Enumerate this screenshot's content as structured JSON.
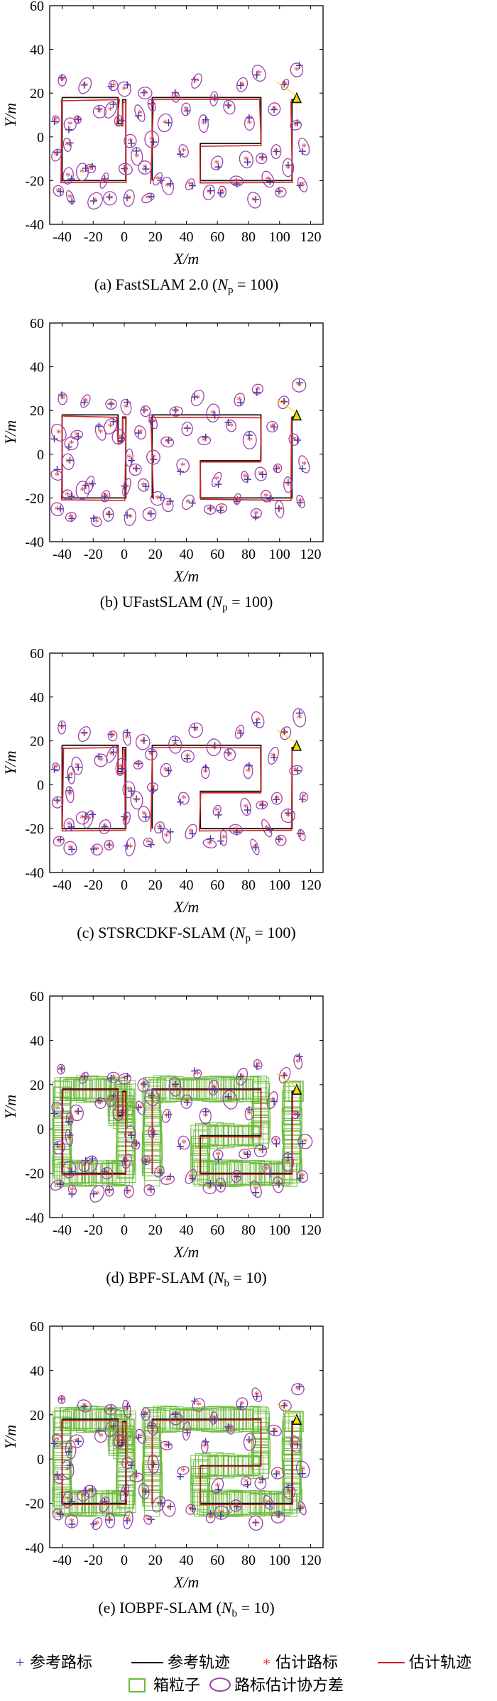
{
  "colors": {
    "reference_landmark": "#3a3a9c",
    "reference_path": "#111111",
    "estimated_landmark": "#e23a3a",
    "estimated_path": "#d62020",
    "covariance": "#a040b0",
    "box_particle": "#6cbb3c",
    "vehicle": "#111111",
    "vehicle_fill": "#f5e000"
  },
  "axes": {
    "xlabel": "X/m",
    "ylabel": "Y/m",
    "xlim": [
      -48,
      128
    ],
    "ylim": [
      -40,
      60
    ],
    "xticks": [
      "-40",
      "-20",
      "0",
      "20",
      "40",
      "60",
      "80",
      "100",
      "120"
    ],
    "yticks": [
      "-40",
      "-20",
      "0",
      "20",
      "40",
      "60"
    ]
  },
  "chart_data": {
    "type": "scatter",
    "grid": false,
    "reference_path": [
      [
        -40,
        18
      ],
      [
        -3,
        18
      ],
      [
        -3,
        5
      ],
      [
        -2,
        16
      ],
      [
        0,
        5
      ],
      [
        0,
        -20
      ],
      [
        -40,
        -20
      ],
      [
        -40,
        18
      ]
    ],
    "subplots": [
      {
        "label": "(a) FastSLAM 2.0 (N_p = 100)",
        "caption_prefix": "(a) FastSLAM 2.0 (",
        "param_symbol": "N",
        "param_sub": "p",
        "param_value": "= 100)",
        "variant": "ellipse"
      },
      {
        "label": "(b) UFastSLAM (N_p = 100)",
        "caption_prefix": "(b) UFastSLAM (",
        "param_symbol": "N",
        "param_sub": "p",
        "param_value": "= 100)",
        "variant": "ellipse"
      },
      {
        "label": "(c) STSRCDKF-SLAM (N_p = 100)",
        "caption_prefix": "(c) STSRCDKF-SLAM (",
        "param_symbol": "N",
        "param_sub": "p",
        "param_value": "= 100)",
        "variant": "ellipse"
      },
      {
        "label": "(d) BPF-SLAM (N_b = 10)",
        "caption_prefix": "(d) BPF-SLAM (",
        "param_symbol": "N",
        "param_sub": "b",
        "param_value": "= 10)",
        "variant": "box"
      },
      {
        "label": "(e) IOBPF-SLAM (N_b = 10)",
        "caption_prefix": "(e) IOBPF-SLAM (",
        "param_symbol": "N",
        "param_sub": "b",
        "param_value": "= 10)",
        "variant": "box"
      }
    ]
  },
  "legend": {
    "reference_landmark": "参考路标",
    "reference_path": "参考轨迹",
    "estimated_landmark": "估计路标",
    "estimated_path": "估计轨迹",
    "box_particle": "箱粒子",
    "covariance": "路标估计协方差"
  }
}
